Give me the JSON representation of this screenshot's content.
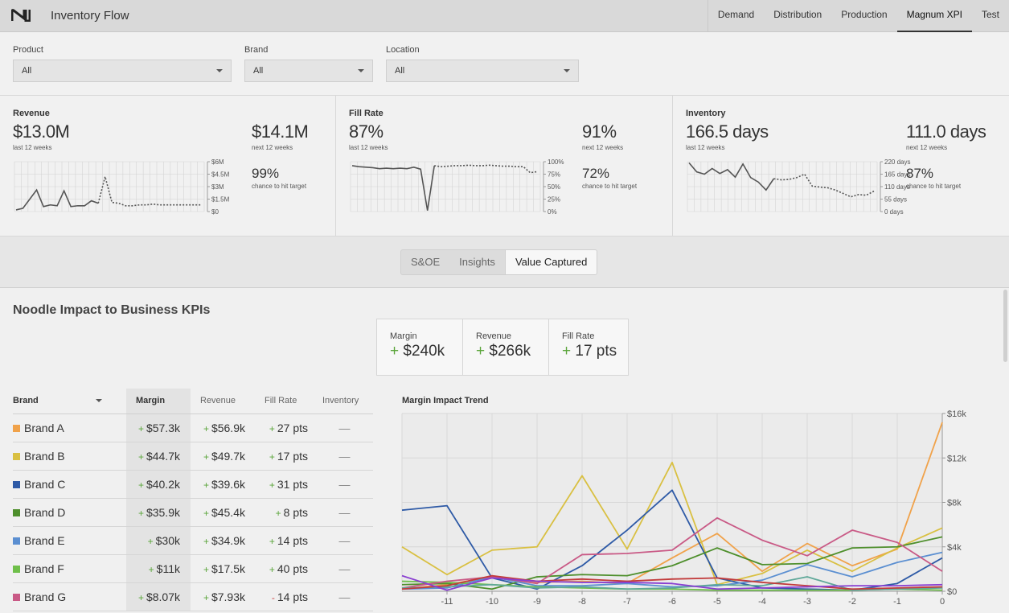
{
  "app": {
    "title": "Inventory Flow",
    "logo_icon": "noodle-logo-icon"
  },
  "nav": [
    {
      "label": "Demand",
      "active": false
    },
    {
      "label": "Distribution",
      "active": false
    },
    {
      "label": "Production",
      "active": false
    },
    {
      "label": "Magnum XPI",
      "active": true
    },
    {
      "label": "Test",
      "active": false
    }
  ],
  "filters": [
    {
      "label": "Product",
      "value": "All"
    },
    {
      "label": "Brand",
      "value": "All"
    },
    {
      "label": "Location",
      "value": "All"
    }
  ],
  "kpis": [
    {
      "title": "Revenue",
      "value": "$13.0M",
      "value_sub": "last 12 weeks",
      "forecast": "$14.1M",
      "forecast_sub": "next 12 weeks",
      "chance": "99%",
      "chance_sub": "chance to hit target",
      "ticks": [
        "$6M",
        "$4.5M",
        "$3M",
        "$1.5M",
        "$0"
      ],
      "ymax": 6,
      "actual": [
        0.2,
        0.4,
        1.5,
        2.6,
        0.6,
        0.8,
        0.7,
        2.5,
        0.6,
        0.7,
        0.7,
        1.3,
        1.0
      ],
      "forecast_series": [
        1.0,
        4.2,
        1.1,
        1.0,
        0.7,
        0.7,
        0.8,
        0.8,
        0.9,
        0.8,
        0.8,
        0.8,
        0.8,
        0.8,
        0.8,
        0.8
      ]
    },
    {
      "title": "Fill Rate",
      "value": "87%",
      "value_sub": "last 12 weeks",
      "forecast": "91%",
      "forecast_sub": "next 12 weeks",
      "chance": "72%",
      "chance_sub": "chance to hit target",
      "ticks": [
        "100%",
        "75%",
        "50%",
        "25%",
        "0%"
      ],
      "ymax": 100,
      "actual": [
        92,
        90,
        89,
        88,
        86,
        87,
        86,
        87,
        86,
        89,
        85,
        2,
        92
      ],
      "forecast_series": [
        92,
        90,
        91,
        92,
        92,
        93,
        92,
        92,
        93,
        92,
        91,
        91,
        90,
        90,
        78,
        80
      ]
    },
    {
      "title": "Inventory",
      "value": "166.5 days",
      "value_sub": "last 12 weeks",
      "forecast": "111.0 days",
      "forecast_sub": "next 12 weeks",
      "chance": "87%",
      "chance_sub": "chance to hit target",
      "ticks": [
        "220 days",
        "165 days",
        "110 days",
        "55 days",
        "0 days"
      ],
      "ymax": 220,
      "actual": [
        215,
        175,
        165,
        190,
        168,
        185,
        152,
        210,
        150,
        130,
        95,
        145
      ],
      "forecast_series": [
        145,
        140,
        142,
        150,
        165,
        112,
        108,
        105,
        95,
        80,
        65,
        75,
        72,
        90
      ]
    }
  ],
  "tabs": [
    {
      "label": "S&OE",
      "active": false
    },
    {
      "label": "Insights",
      "active": false
    },
    {
      "label": "Value Captured",
      "active": true
    }
  ],
  "section": {
    "title": "Noodle Impact to Business KPIs"
  },
  "impact": [
    {
      "label": "Margin",
      "value": "$240k"
    },
    {
      "label": "Revenue",
      "value": "$266k"
    },
    {
      "label": "Fill Rate",
      "value": "17 pts"
    }
  ],
  "table": {
    "headers": {
      "brand": "Brand",
      "margin": "Margin",
      "revenue": "Revenue",
      "fill": "Fill Rate",
      "inventory": "Inventory"
    },
    "rows": [
      {
        "brand": "Brand A",
        "color": "#f0a24a",
        "margin": "$57.3k",
        "revenue": "$56.9k",
        "fill_sign": "+",
        "fill": "27 pts",
        "inventory": "—"
      },
      {
        "brand": "Brand B",
        "color": "#d9c042",
        "margin": "$44.7k",
        "revenue": "$49.7k",
        "fill_sign": "+",
        "fill": "17 pts",
        "inventory": "—"
      },
      {
        "brand": "Brand C",
        "color": "#2e5aa6",
        "margin": "$40.2k",
        "revenue": "$39.6k",
        "fill_sign": "+",
        "fill": "31 pts",
        "inventory": "—"
      },
      {
        "brand": "Brand D",
        "color": "#4e8f2c",
        "margin": "$35.9k",
        "revenue": "$45.4k",
        "fill_sign": "+",
        "fill": "8 pts",
        "inventory": "—"
      },
      {
        "brand": "Brand E",
        "color": "#5b8fd1",
        "margin": "$30k",
        "revenue": "$34.9k",
        "fill_sign": "+",
        "fill": "14 pts",
        "inventory": "—"
      },
      {
        "brand": "Brand F",
        "color": "#6fbf4a",
        "margin": "$11k",
        "revenue": "$17.5k",
        "fill_sign": "+",
        "fill": "40 pts",
        "inventory": "—"
      },
      {
        "brand": "Brand G",
        "color": "#c95a86",
        "margin": "$8.07k",
        "revenue": "$7.93k",
        "fill_sign": "-",
        "fill": "14 pts",
        "inventory": "—"
      }
    ]
  },
  "chart_data": {
    "type": "line",
    "title": "Margin Impact Trend",
    "x": [
      -12,
      -11,
      -10,
      -9,
      -8,
      -7,
      -6,
      -5,
      -4,
      -3,
      -2,
      -1,
      0
    ],
    "xticks": [
      -11,
      -10,
      -9,
      -8,
      -7,
      -6,
      -5,
      -4,
      -3,
      -2,
      -1,
      0
    ],
    "yticks": [
      "$16k",
      "$12k",
      "$8k",
      "$4k",
      "$0"
    ],
    "ylim": [
      0,
      16000
    ],
    "grid": true,
    "series": [
      {
        "color": "#f0a24a",
        "values": [
          200,
          600,
          1300,
          800,
          900,
          700,
          3000,
          5200,
          1800,
          4300,
          2300,
          3800,
          15200
        ]
      },
      {
        "color": "#d9c042",
        "values": [
          4000,
          1500,
          3700,
          4000,
          10400,
          3800,
          11600,
          600,
          1600,
          3700,
          1800,
          3900,
          5700
        ]
      },
      {
        "color": "#2e5aa6",
        "values": [
          7300,
          7700,
          1200,
          200,
          2300,
          5500,
          9100,
          1200,
          300,
          200,
          100,
          700,
          3000
        ]
      },
      {
        "color": "#4e8f2c",
        "values": [
          600,
          700,
          200,
          1300,
          1500,
          1400,
          2300,
          3900,
          2400,
          2500,
          3900,
          4000,
          4900
        ]
      },
      {
        "color": "#5b8fd1",
        "values": [
          200,
          300,
          1300,
          500,
          500,
          700,
          400,
          500,
          1000,
          2400,
          1300,
          2600,
          3500
        ]
      },
      {
        "color": "#6fbf4a",
        "values": [
          900,
          800,
          600,
          400,
          300,
          200,
          200,
          100,
          100,
          100,
          100,
          200,
          100
        ]
      },
      {
        "color": "#c95a86",
        "values": [
          300,
          900,
          1300,
          700,
          3300,
          3400,
          3700,
          6600,
          4600,
          3200,
          5500,
          4400,
          1800
        ]
      },
      {
        "color": "#5fa899",
        "values": [
          300,
          400,
          600,
          300,
          400,
          200,
          300,
          600,
          500,
          1300,
          100,
          200,
          300
        ]
      },
      {
        "color": "#c23b3b",
        "values": [
          200,
          500,
          1400,
          900,
          1100,
          900,
          1100,
          1200,
          800,
          500,
          200,
          300,
          400
        ]
      },
      {
        "color": "#8a3fd1",
        "values": [
          1400,
          100,
          1200,
          900,
          800,
          800,
          700,
          200,
          300,
          400,
          500,
          500,
          600
        ]
      }
    ]
  }
}
